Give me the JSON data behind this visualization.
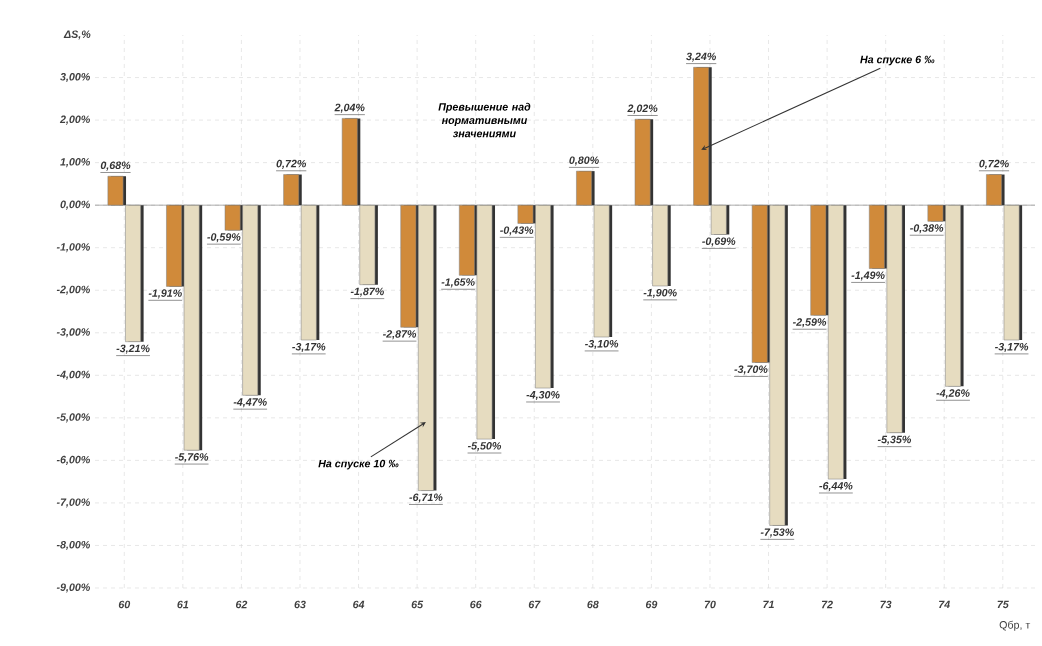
{
  "chart_data": {
    "type": "bar",
    "xlabel": "Qбр, т",
    "ylabel": "ΔS,%",
    "categories": [
      "60",
      "61",
      "62",
      "63",
      "64",
      "65",
      "66",
      "67",
      "68",
      "69",
      "70",
      "71",
      "72",
      "73",
      "74",
      "75"
    ],
    "ylim": [
      -9,
      4
    ],
    "yticks": [
      {
        "value": -9,
        "label": "-9,00%"
      },
      {
        "value": -8,
        "label": "-8,00%"
      },
      {
        "value": -7,
        "label": "-7,00%"
      },
      {
        "value": -6,
        "label": "-6,00%"
      },
      {
        "value": -5,
        "label": "-5,00%"
      },
      {
        "value": -4,
        "label": "-4,00%"
      },
      {
        "value": -3,
        "label": "-3,00%"
      },
      {
        "value": -2,
        "label": "-2,00%"
      },
      {
        "value": -1,
        "label": "-1,00%"
      },
      {
        "value": 0,
        "label": "0,00%"
      },
      {
        "value": 1,
        "label": "1,00%"
      },
      {
        "value": 2,
        "label": "2,00%"
      },
      {
        "value": 3,
        "label": "3,00%"
      }
    ],
    "grid": true,
    "series": [
      {
        "name": "На спуске 6 ‰",
        "color": "#d08a3a",
        "values": [
          0.68,
          -1.91,
          -0.59,
          0.72,
          2.04,
          -2.87,
          -1.65,
          -0.43,
          0.8,
          2.02,
          3.24,
          -3.7,
          -2.59,
          -1.49,
          -0.38,
          0.72
        ],
        "value_labels": [
          "0,68%",
          "-1,91%",
          "-0,59%",
          "0,72%",
          "2,04%",
          "-2,87%",
          "-1,65%",
          "-0,43%",
          "0,80%",
          "2,02%",
          "3,24%",
          "-3,70%",
          "-2,59%",
          "-1,49%",
          "-0,38%",
          "0,72%"
        ]
      },
      {
        "name": "На спуске 10 ‰",
        "color": "#e6dcc0",
        "values": [
          -3.21,
          -5.76,
          -4.47,
          -3.17,
          -1.87,
          -6.71,
          -5.5,
          -4.3,
          -3.1,
          -1.9,
          -0.69,
          -7.53,
          -6.44,
          -5.35,
          -4.26,
          -3.17
        ],
        "value_labels": [
          "-3,21%",
          "-5,76%",
          "-4,47%",
          "-3,17%",
          "-1,87%",
          "-6,71%",
          "-5,50%",
          "-4,30%",
          "-3,10%",
          "-1,90%",
          "-0,69%",
          "-7,53%",
          "-6,44%",
          "-5,35%",
          "-4,26%",
          "-3,17%"
        ]
      }
    ],
    "annotations": [
      "Превышение над нормативными значениями"
    ]
  }
}
